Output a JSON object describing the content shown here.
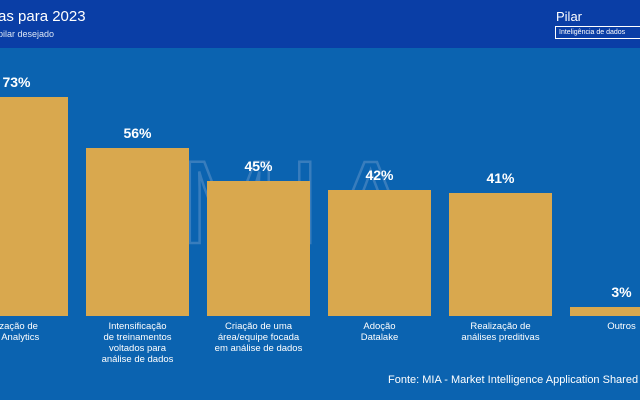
{
  "header": {
    "title": "as para 2023",
    "subtitle": "pilar desejado",
    "pilar_label": "Pilar",
    "pilar_value": "Inteligência de dados"
  },
  "watermark": "MIA",
  "source": "Fonte: MIA - Market Intelligence Application Shared",
  "colors": {
    "background": "#0b63b0",
    "header": "#0a3ea6",
    "bar": "#d9a84e"
  },
  "chart_data": {
    "type": "bar",
    "categories": [
      [
        "lização de",
        "a Analytics"
      ],
      [
        "Intensificação",
        "de treinamentos",
        "voltados para",
        "análise de dados"
      ],
      [
        "Criação de uma",
        "área/equipe focada",
        "em análise de dados"
      ],
      [
        "Adoção",
        "Datalake"
      ],
      [
        "Realização de",
        "análises preditivas"
      ],
      [
        "Outros"
      ]
    ],
    "values": [
      73,
      56,
      45,
      42,
      41,
      3
    ],
    "value_labels": [
      "73%",
      "56%",
      "45%",
      "42%",
      "41%",
      "3%"
    ],
    "ylim": [
      0,
      100
    ]
  }
}
